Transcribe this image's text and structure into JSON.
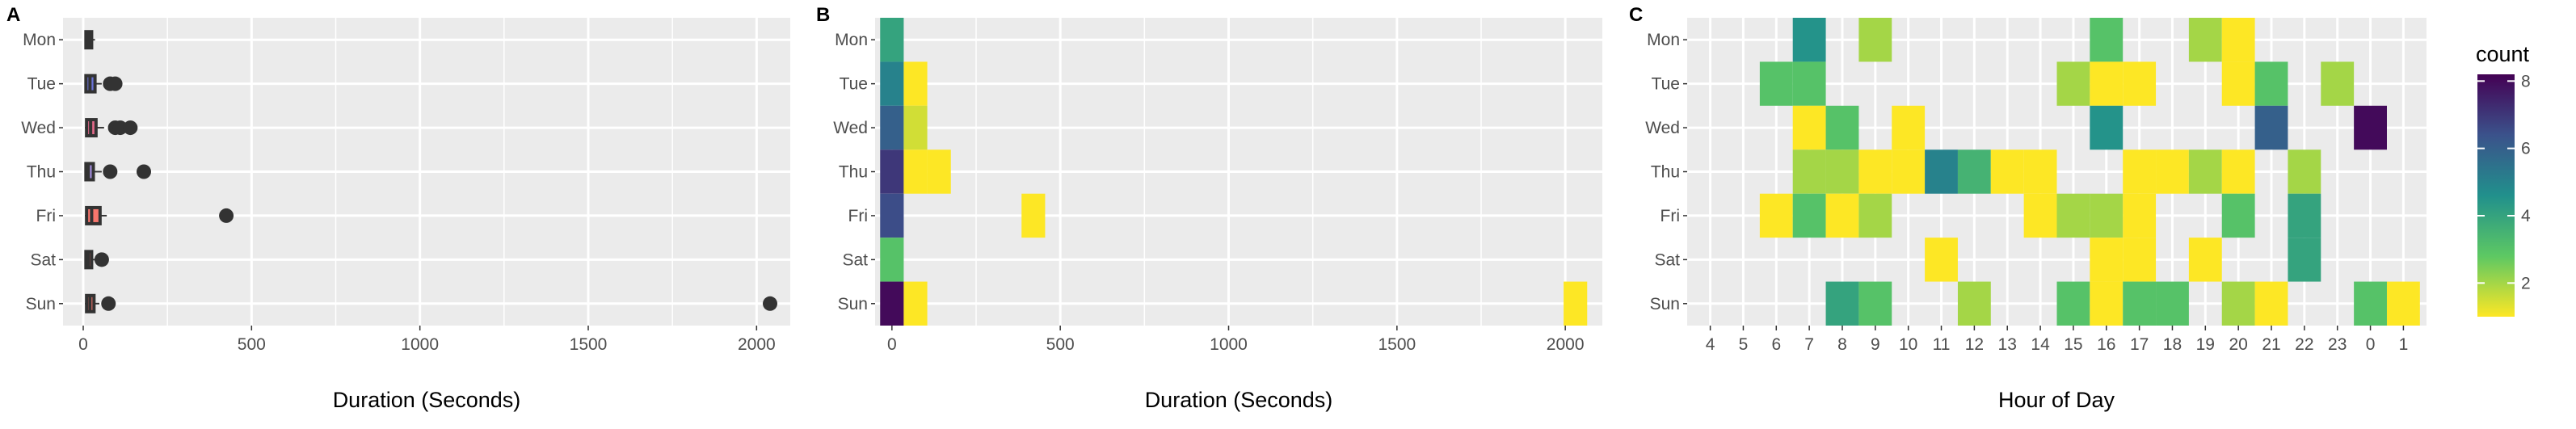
{
  "chart_data": [
    {
      "panel": "A",
      "type": "boxplot",
      "orientation": "horizontal",
      "categories": [
        "Mon",
        "Tue",
        "Wed",
        "Thu",
        "Fri",
        "Sat",
        "Sun"
      ],
      "xlabel": "Duration (Seconds)",
      "xlim": [
        -60,
        2100
      ],
      "x_ticks": [
        0,
        500,
        1000,
        1500,
        2000
      ],
      "grid": true,
      "boxes": [
        {
          "day": "Mon",
          "min": 5,
          "q1": 8,
          "median": 16,
          "q3": 25,
          "max": 35,
          "fill": "#F8766D",
          "outliers": []
        },
        {
          "day": "Tue",
          "min": 5,
          "q1": 8,
          "median": 20,
          "q3": 35,
          "max": 55,
          "fill": "#6A73D8",
          "outliers": [
            80,
            95
          ]
        },
        {
          "day": "Wed",
          "min": 5,
          "q1": 10,
          "median": 22,
          "q3": 38,
          "max": 62,
          "fill": "#E36A8A",
          "outliers": [
            95,
            110,
            140
          ]
        },
        {
          "day": "Thu",
          "min": 5,
          "q1": 8,
          "median": 15,
          "q3": 30,
          "max": 55,
          "fill": "#9F8AD8",
          "outliers": [
            80,
            180
          ]
        },
        {
          "day": "Fri",
          "min": 5,
          "q1": 10,
          "median": 25,
          "q3": 50,
          "max": 70,
          "fill": "#F8766D",
          "outliers": [
            425
          ]
        },
        {
          "day": "Sat",
          "min": 5,
          "q1": 8,
          "median": 15,
          "q3": 25,
          "max": 35,
          "fill": "#F8766D",
          "outliers": [
            55
          ]
        },
        {
          "day": "Sun",
          "min": 5,
          "q1": 10,
          "median": 20,
          "q3": 32,
          "max": 48,
          "fill": "#F8766D",
          "outliers": [
            75,
            2040
          ]
        }
      ]
    },
    {
      "panel": "B",
      "type": "heatmap",
      "categories": [
        "Mon",
        "Tue",
        "Wed",
        "Thu",
        "Fri",
        "Sat",
        "Sun"
      ],
      "xlabel": "Duration (Seconds)",
      "xlim": [
        -50,
        2110
      ],
      "x_ticks": [
        0,
        500,
        1000,
        1500,
        2000
      ],
      "bin_width": 70,
      "grid": true,
      "cells": [
        {
          "day": "Mon",
          "x": 0,
          "count": 4
        },
        {
          "day": "Tue",
          "x": 0,
          "count": 5
        },
        {
          "day": "Tue",
          "x": 70,
          "count": 1
        },
        {
          "day": "Wed",
          "x": 0,
          "count": 6
        },
        {
          "day": "Wed",
          "x": 70,
          "count": 1.5
        },
        {
          "day": "Thu",
          "x": 0,
          "count": 7
        },
        {
          "day": "Thu",
          "x": 70,
          "count": 1
        },
        {
          "day": "Thu",
          "x": 140,
          "count": 1
        },
        {
          "day": "Fri",
          "x": 0,
          "count": 6.5
        },
        {
          "day": "Fri",
          "x": 420,
          "count": 1
        },
        {
          "day": "Sat",
          "x": 0,
          "count": 3
        },
        {
          "day": "Sun",
          "x": 0,
          "count": 8
        },
        {
          "day": "Sun",
          "x": 70,
          "count": 1
        },
        {
          "day": "Sun",
          "x": 2030,
          "count": 1
        }
      ]
    },
    {
      "panel": "C",
      "type": "heatmap",
      "categories": [
        "Mon",
        "Tue",
        "Wed",
        "Thu",
        "Fri",
        "Sat",
        "Sun"
      ],
      "xlabel": "Hour of Day",
      "x_ticks": [
        "4",
        "5",
        "6",
        "7",
        "8",
        "9",
        "10",
        "11",
        "12",
        "13",
        "14",
        "15",
        "16",
        "17",
        "18",
        "19",
        "20",
        "21",
        "22",
        "23",
        "0",
        "1"
      ],
      "grid": true,
      "cells": [
        {
          "day": "Mon",
          "hour": "7",
          "count": 4.5
        },
        {
          "day": "Mon",
          "hour": "9",
          "count": 2
        },
        {
          "day": "Mon",
          "hour": "16",
          "count": 3
        },
        {
          "day": "Mon",
          "hour": "19",
          "count": 2
        },
        {
          "day": "Mon",
          "hour": "20",
          "count": 1
        },
        {
          "day": "Tue",
          "hour": "6",
          "count": 3
        },
        {
          "day": "Tue",
          "hour": "7",
          "count": 3
        },
        {
          "day": "Tue",
          "hour": "15",
          "count": 2
        },
        {
          "day": "Tue",
          "hour": "16",
          "count": 1
        },
        {
          "day": "Tue",
          "hour": "17",
          "count": 1
        },
        {
          "day": "Tue",
          "hour": "20",
          "count": 1
        },
        {
          "day": "Tue",
          "hour": "21",
          "count": 3
        },
        {
          "day": "Tue",
          "hour": "23",
          "count": 2
        },
        {
          "day": "Wed",
          "hour": "7",
          "count": 1
        },
        {
          "day": "Wed",
          "hour": "8",
          "count": 3
        },
        {
          "day": "Wed",
          "hour": "10",
          "count": 1
        },
        {
          "day": "Wed",
          "hour": "16",
          "count": 4.5
        },
        {
          "day": "Wed",
          "hour": "21",
          "count": 6
        },
        {
          "day": "Wed",
          "hour": "0",
          "count": 8
        },
        {
          "day": "Thu",
          "hour": "7",
          "count": 2
        },
        {
          "day": "Thu",
          "hour": "8",
          "count": 2
        },
        {
          "day": "Thu",
          "hour": "9",
          "count": 1
        },
        {
          "day": "Thu",
          "hour": "10",
          "count": 1
        },
        {
          "day": "Thu",
          "hour": "11",
          "count": 5
        },
        {
          "day": "Thu",
          "hour": "12",
          "count": 3.5
        },
        {
          "day": "Thu",
          "hour": "13",
          "count": 1
        },
        {
          "day": "Thu",
          "hour": "14",
          "count": 1
        },
        {
          "day": "Thu",
          "hour": "17",
          "count": 1
        },
        {
          "day": "Thu",
          "hour": "18",
          "count": 1
        },
        {
          "day": "Thu",
          "hour": "19",
          "count": 2
        },
        {
          "day": "Thu",
          "hour": "20",
          "count": 1
        },
        {
          "day": "Thu",
          "hour": "22",
          "count": 2
        },
        {
          "day": "Fri",
          "hour": "6",
          "count": 1
        },
        {
          "day": "Fri",
          "hour": "7",
          "count": 3
        },
        {
          "day": "Fri",
          "hour": "8",
          "count": 1
        },
        {
          "day": "Fri",
          "hour": "9",
          "count": 2
        },
        {
          "day": "Fri",
          "hour": "14",
          "count": 1
        },
        {
          "day": "Fri",
          "hour": "15",
          "count": 2
        },
        {
          "day": "Fri",
          "hour": "16",
          "count": 2
        },
        {
          "day": "Fri",
          "hour": "17",
          "count": 1
        },
        {
          "day": "Fri",
          "hour": "20",
          "count": 3
        },
        {
          "day": "Fri",
          "hour": "22",
          "count": 4
        },
        {
          "day": "Sat",
          "hour": "11",
          "count": 1
        },
        {
          "day": "Sat",
          "hour": "16",
          "count": 1
        },
        {
          "day": "Sat",
          "hour": "17",
          "count": 1
        },
        {
          "day": "Sat",
          "hour": "19",
          "count": 1
        },
        {
          "day": "Sat",
          "hour": "22",
          "count": 4
        },
        {
          "day": "Sun",
          "hour": "8",
          "count": 4
        },
        {
          "day": "Sun",
          "hour": "9",
          "count": 3
        },
        {
          "day": "Sun",
          "hour": "12",
          "count": 2
        },
        {
          "day": "Sun",
          "hour": "15",
          "count": 3
        },
        {
          "day": "Sun",
          "hour": "16",
          "count": 1
        },
        {
          "day": "Sun",
          "hour": "17",
          "count": 3
        },
        {
          "day": "Sun",
          "hour": "18",
          "count": 3
        },
        {
          "day": "Sun",
          "hour": "20",
          "count": 2
        },
        {
          "day": "Sun",
          "hour": "21",
          "count": 1
        },
        {
          "day": "Sun",
          "hour": "0",
          "count": 3
        },
        {
          "day": "Sun",
          "hour": "1",
          "count": 1
        }
      ]
    }
  ],
  "legend": {
    "title": "count",
    "ticks": [
      2,
      4,
      6,
      8
    ],
    "range": [
      1,
      8.2
    ],
    "palette": "viridis (reversed)",
    "colors": [
      "#FDE725",
      "#5DC863",
      "#21908C",
      "#3B528B",
      "#440154"
    ],
    "placement": "right"
  },
  "colors": {
    "panel_background": "#EBEBEB",
    "grid_line": "#FFFFFF",
    "box_outline": "#333333",
    "outlier": "#333333"
  }
}
